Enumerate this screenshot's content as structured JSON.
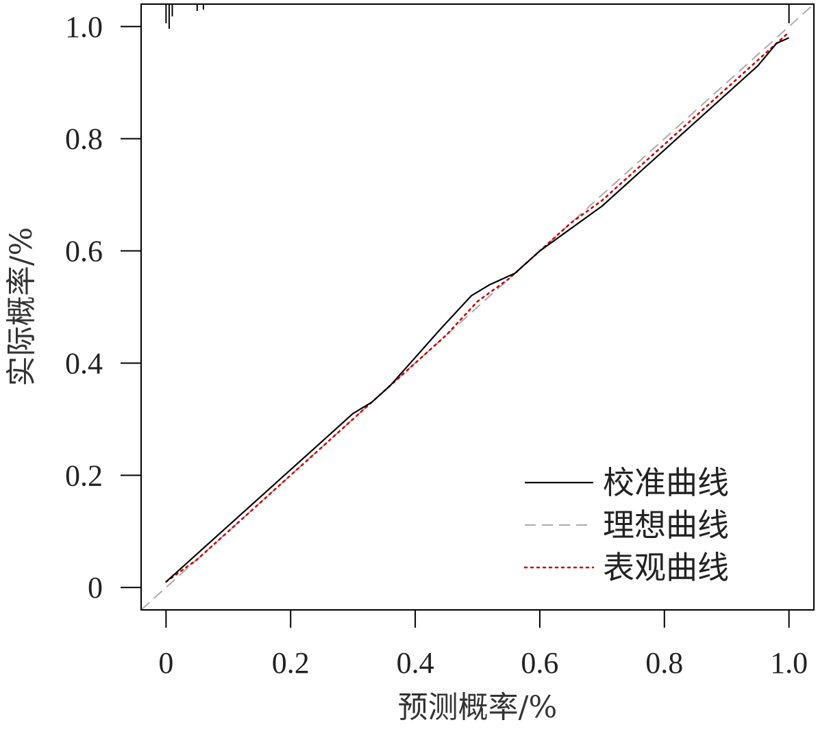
{
  "chart_data": {
    "type": "line",
    "xlabel": "预测概率/%",
    "ylabel": "实际概率/%",
    "xlim": [
      -0.04,
      1.04
    ],
    "ylim": [
      -0.04,
      1.04
    ],
    "x_ticks": [
      0,
      0.2,
      0.4,
      0.6,
      0.8,
      1.0
    ],
    "x_tick_labels": [
      "0",
      "0.2",
      "0.4",
      "0.6",
      "0.8",
      "1.0"
    ],
    "y_ticks": [
      0,
      0.2,
      0.4,
      0.6,
      0.8,
      1.0
    ],
    "y_tick_labels": [
      "0",
      "0.2",
      "0.4",
      "0.6",
      "0.8",
      "1.0"
    ],
    "grid": false,
    "legend_position": "bottom-right",
    "series": [
      {
        "name": "校准曲线",
        "style": "solid",
        "color": "#000000",
        "x": [
          0.0,
          0.05,
          0.1,
          0.15,
          0.19,
          0.22,
          0.27,
          0.3,
          0.33,
          0.36,
          0.4,
          0.44,
          0.49,
          0.52,
          0.56,
          0.6,
          0.65,
          0.7,
          0.75,
          0.8,
          0.85,
          0.9,
          0.95,
          0.98,
          1.0
        ],
        "y": [
          0.01,
          0.06,
          0.11,
          0.16,
          0.2,
          0.23,
          0.28,
          0.31,
          0.33,
          0.36,
          0.41,
          0.46,
          0.52,
          0.54,
          0.56,
          0.6,
          0.64,
          0.68,
          0.73,
          0.78,
          0.83,
          0.88,
          0.93,
          0.97,
          0.98
        ]
      },
      {
        "name": "理想曲线",
        "style": "dashed",
        "color": "#aaaaaa",
        "x": [
          -0.04,
          1.04
        ],
        "y": [
          -0.04,
          1.04
        ]
      },
      {
        "name": "表观曲线",
        "style": "dotted",
        "color": "#cc0000",
        "x": [
          0.0,
          0.05,
          0.1,
          0.15,
          0.2,
          0.25,
          0.3,
          0.35,
          0.4,
          0.45,
          0.5,
          0.55,
          0.6,
          0.65,
          0.7,
          0.75,
          0.8,
          0.85,
          0.9,
          0.95,
          0.98,
          1.0
        ],
        "y": [
          0.01,
          0.05,
          0.1,
          0.15,
          0.2,
          0.25,
          0.3,
          0.35,
          0.4,
          0.45,
          0.51,
          0.55,
          0.6,
          0.65,
          0.69,
          0.74,
          0.79,
          0.84,
          0.89,
          0.94,
          0.97,
          0.99
        ]
      }
    ]
  }
}
